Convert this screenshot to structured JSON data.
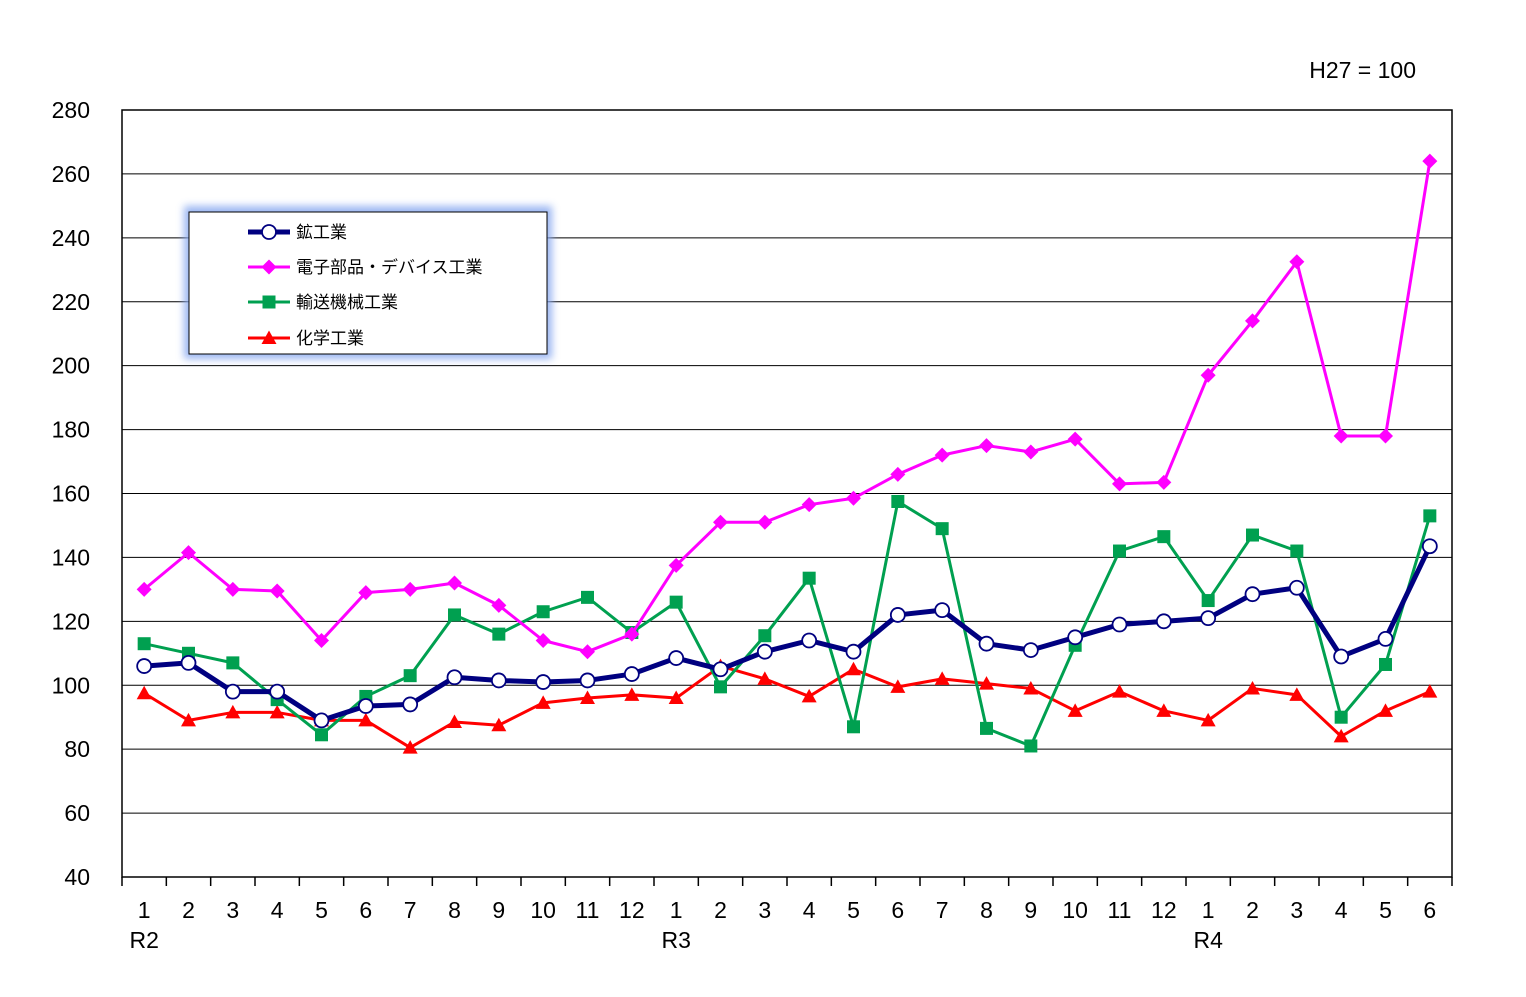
{
  "chart_data": {
    "type": "line",
    "annotation": "H27 = 100",
    "categories": [
      "1",
      "2",
      "3",
      "4",
      "5",
      "6",
      "7",
      "8",
      "9",
      "10",
      "11",
      "12",
      "1",
      "2",
      "3",
      "4",
      "5",
      "6",
      "7",
      "8",
      "9",
      "10",
      "11",
      "12",
      "1",
      "2",
      "3",
      "4",
      "5",
      "6"
    ],
    "year_labels": [
      {
        "index": 0,
        "label": "R2"
      },
      {
        "index": 12,
        "label": "R3"
      },
      {
        "index": 24,
        "label": "R4"
      }
    ],
    "ylim": [
      40,
      280
    ],
    "yticks": [
      "40",
      "60",
      "80",
      "100",
      "120",
      "140",
      "160",
      "180",
      "200",
      "220",
      "240",
      "260",
      "280"
    ],
    "grid": true,
    "legend_position": "top-left",
    "series": [
      {
        "name": "鉱工業",
        "color": "#000080",
        "marker": "circle-open",
        "values": [
          106,
          107,
          98,
          98,
          89,
          93.5,
          94,
          102.5,
          101.5,
          101,
          101.5,
          103.5,
          108.5,
          105,
          110.5,
          114,
          110.5,
          122,
          123.5,
          113,
          111,
          115,
          119,
          120,
          121,
          128.5,
          130.5,
          109,
          114.5,
          143.5
        ]
      },
      {
        "name": "電子部品・デバイス工業",
        "color": "#ff00ff",
        "marker": "diamond",
        "values": [
          130,
          141.5,
          130,
          129.5,
          114,
          129,
          130,
          132,
          125,
          114,
          110.5,
          116,
          137.5,
          151,
          151,
          156.5,
          158.5,
          166,
          172,
          175,
          173,
          177,
          163,
          163.5,
          197,
          214,
          232.5,
          178,
          178,
          264
        ]
      },
      {
        "name": "輸送機械工業",
        "color": "#00a050",
        "marker": "square",
        "values": [
          113,
          110,
          107,
          95.5,
          84.5,
          96.5,
          103,
          122,
          116,
          123,
          127.5,
          116.5,
          126,
          99.5,
          115.5,
          133.5,
          87,
          157.5,
          149,
          86.5,
          81,
          112.5,
          142,
          146.5,
          126.5,
          147,
          142,
          90,
          106.5,
          153
        ]
      },
      {
        "name": "化学工業",
        "color": "#ff0000",
        "marker": "triangle",
        "values": [
          97.5,
          89,
          91.5,
          91.5,
          89,
          89,
          80.5,
          88.5,
          87.5,
          94.5,
          96,
          97,
          96,
          106,
          102,
          96.5,
          105,
          99.5,
          102,
          100.5,
          99,
          92,
          98,
          92,
          89,
          99,
          97,
          84,
          92,
          98
        ]
      }
    ]
  }
}
